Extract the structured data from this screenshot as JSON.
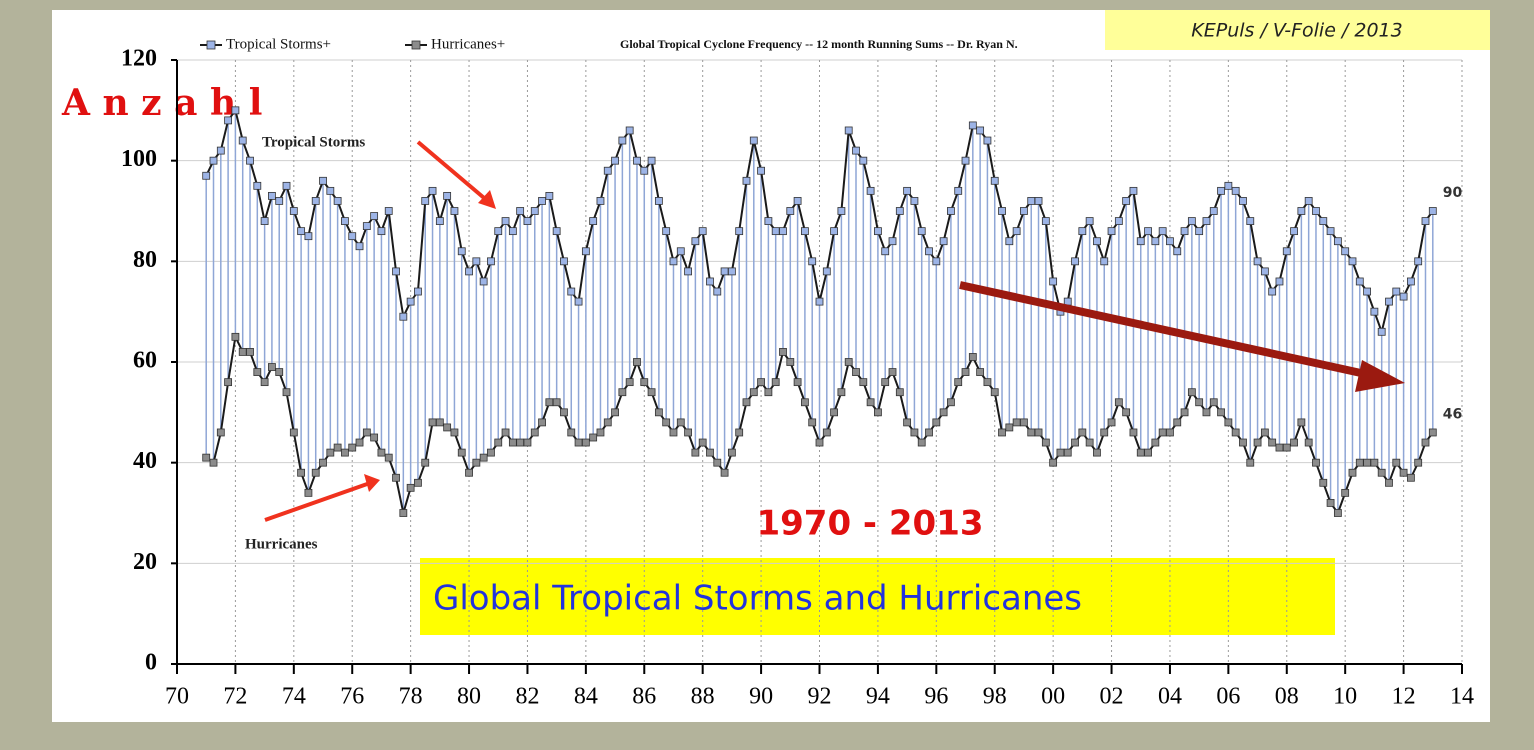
{
  "chart_data": {
    "type": "line",
    "title": "Global Tropical Cyclone Frequency -- 12 month Running Sums -- Dr. Ryan N.",
    "source_note": "KEPuls / V-Folie / 2013",
    "y_label": "A n z a h l",
    "annotations": [
      "Tropical Storms",
      "Hurricanes",
      "1970 -  2013",
      "Global Tropical Storms and Hurricanes"
    ],
    "xlim": [
      70,
      114
    ],
    "xticks": [
      70,
      72,
      74,
      76,
      78,
      80,
      82,
      84,
      86,
      88,
      90,
      92,
      94,
      96,
      98,
      {
        "value": 100,
        "label": "00"
      },
      {
        "value": 102,
        "label": "02"
      },
      {
        "value": 104,
        "label": "04"
      },
      {
        "value": 106,
        "label": "06"
      },
      {
        "value": 108,
        "label": "08"
      },
      {
        "value": 110,
        "label": "10"
      },
      {
        "value": 112,
        "label": "12"
      },
      {
        "value": 114,
        "label": "14"
      }
    ],
    "ylim": [
      0,
      120
    ],
    "yticks": [
      0,
      20,
      40,
      60,
      80,
      100,
      120
    ],
    "grid": true,
    "x": [
      71,
      71.25,
      71.5,
      71.75,
      72,
      72.25,
      72.5,
      72.75,
      73,
      73.25,
      73.5,
      73.75,
      74,
      74.25,
      74.5,
      74.75,
      75,
      75.25,
      75.5,
      75.75,
      76,
      76.25,
      76.5,
      76.75,
      77,
      77.25,
      77.5,
      77.75,
      78,
      78.25,
      78.5,
      78.75,
      79,
      79.25,
      79.5,
      79.75,
      80,
      80.25,
      80.5,
      80.75,
      81,
      81.25,
      81.5,
      81.75,
      82,
      82.25,
      82.5,
      82.75,
      83,
      83.25,
      83.5,
      83.75,
      84,
      84.25,
      84.5,
      84.75,
      85,
      85.25,
      85.5,
      85.75,
      86,
      86.25,
      86.5,
      86.75,
      87,
      87.25,
      87.5,
      87.75,
      88,
      88.25,
      88.5,
      88.75,
      89,
      89.25,
      89.5,
      89.75,
      90,
      90.25,
      90.5,
      90.75,
      91,
      91.25,
      91.5,
      91.75,
      92,
      92.25,
      92.5,
      92.75,
      93,
      93.25,
      93.5,
      93.75,
      94,
      94.25,
      94.5,
      94.75,
      95,
      95.25,
      95.5,
      95.75,
      96,
      96.25,
      96.5,
      96.75,
      97,
      97.25,
      97.5,
      97.75,
      98,
      98.25,
      98.5,
      98.75,
      99,
      99.25,
      99.5,
      99.75,
      100,
      100.25,
      100.5,
      100.75,
      101,
      101.25,
      101.5,
      101.75,
      102,
      102.25,
      102.5,
      102.75,
      103,
      103.25,
      103.5,
      103.75,
      104,
      104.25,
      104.5,
      104.75,
      105,
      105.25,
      105.5,
      105.75,
      106,
      106.25,
      106.5,
      106.75,
      107,
      107.25,
      107.5,
      107.75,
      108,
      108.25,
      108.5,
      108.75,
      109,
      109.25,
      109.5,
      109.75,
      110,
      110.25,
      110.5,
      110.75,
      111,
      111.25,
      111.5,
      111.75,
      112,
      112.25,
      112.5,
      112.75,
      113
    ],
    "series": [
      {
        "name": "Tropical Storms+",
        "color": "#9db4e6",
        "values": [
          97,
          100,
          102,
          108,
          110,
          104,
          100,
          95,
          88,
          93,
          92,
          95,
          90,
          86,
          85,
          92,
          96,
          94,
          92,
          88,
          85,
          83,
          87,
          89,
          86,
          90,
          78,
          69,
          72,
          74,
          92,
          94,
          88,
          93,
          90,
          82,
          78,
          80,
          76,
          80,
          86,
          88,
          86,
          90,
          88,
          90,
          92,
          93,
          86,
          80,
          74,
          72,
          82,
          88,
          92,
          98,
          100,
          104,
          106,
          100,
          98,
          100,
          92,
          86,
          80,
          82,
          78,
          84,
          86,
          76,
          74,
          78,
          78,
          86,
          96,
          104,
          98,
          88,
          86,
          86,
          90,
          92,
          86,
          80,
          72,
          78,
          86,
          90,
          106,
          102,
          100,
          94,
          86,
          82,
          84,
          90,
          94,
          92,
          86,
          82,
          80,
          84,
          90,
          94,
          100,
          107,
          106,
          104,
          96,
          90,
          84,
          86,
          90,
          92,
          92,
          88,
          76,
          70,
          72,
          80,
          86,
          88,
          84,
          80,
          86,
          88,
          92,
          94,
          84,
          86,
          84,
          86,
          84,
          82,
          86,
          88,
          86,
          88,
          90,
          94,
          95,
          94,
          92,
          88,
          80,
          78,
          74,
          76,
          82,
          86,
          90,
          92,
          90,
          88,
          86,
          84,
          82,
          80,
          76,
          74,
          70,
          66,
          72,
          74,
          73,
          76,
          80,
          88,
          90
        ]
      },
      {
        "name": "Hurricanes+",
        "color": "#8c8c8c",
        "values": [
          41,
          40,
          46,
          56,
          65,
          62,
          62,
          58,
          56,
          59,
          58,
          54,
          46,
          38,
          34,
          38,
          40,
          42,
          43,
          42,
          43,
          44,
          46,
          45,
          42,
          41,
          37,
          30,
          35,
          36,
          40,
          48,
          48,
          47,
          46,
          42,
          38,
          40,
          41,
          42,
          44,
          46,
          44,
          44,
          44,
          46,
          48,
          52,
          52,
          50,
          46,
          44,
          44,
          45,
          46,
          48,
          50,
          54,
          56,
          60,
          56,
          54,
          50,
          48,
          46,
          48,
          46,
          42,
          44,
          42,
          40,
          38,
          42,
          46,
          52,
          54,
          56,
          54,
          56,
          62,
          60,
          56,
          52,
          48,
          44,
          46,
          50,
          54,
          60,
          58,
          56,
          52,
          50,
          56,
          58,
          54,
          48,
          46,
          44,
          46,
          48,
          50,
          52,
          56,
          58,
          61,
          58,
          56,
          54,
          46,
          47,
          48,
          48,
          46,
          46,
          44,
          40,
          42,
          42,
          44,
          46,
          44,
          42,
          46,
          48,
          52,
          50,
          46,
          42,
          42,
          44,
          46,
          46,
          48,
          50,
          54,
          52,
          50,
          52,
          50,
          48,
          46,
          44,
          40,
          44,
          46,
          44,
          43,
          43,
          44,
          48,
          44,
          40,
          36,
          32,
          30,
          34,
          38,
          40,
          40,
          40,
          38,
          36,
          40,
          38,
          37,
          40,
          44,
          46
        ]
      }
    ]
  }
}
